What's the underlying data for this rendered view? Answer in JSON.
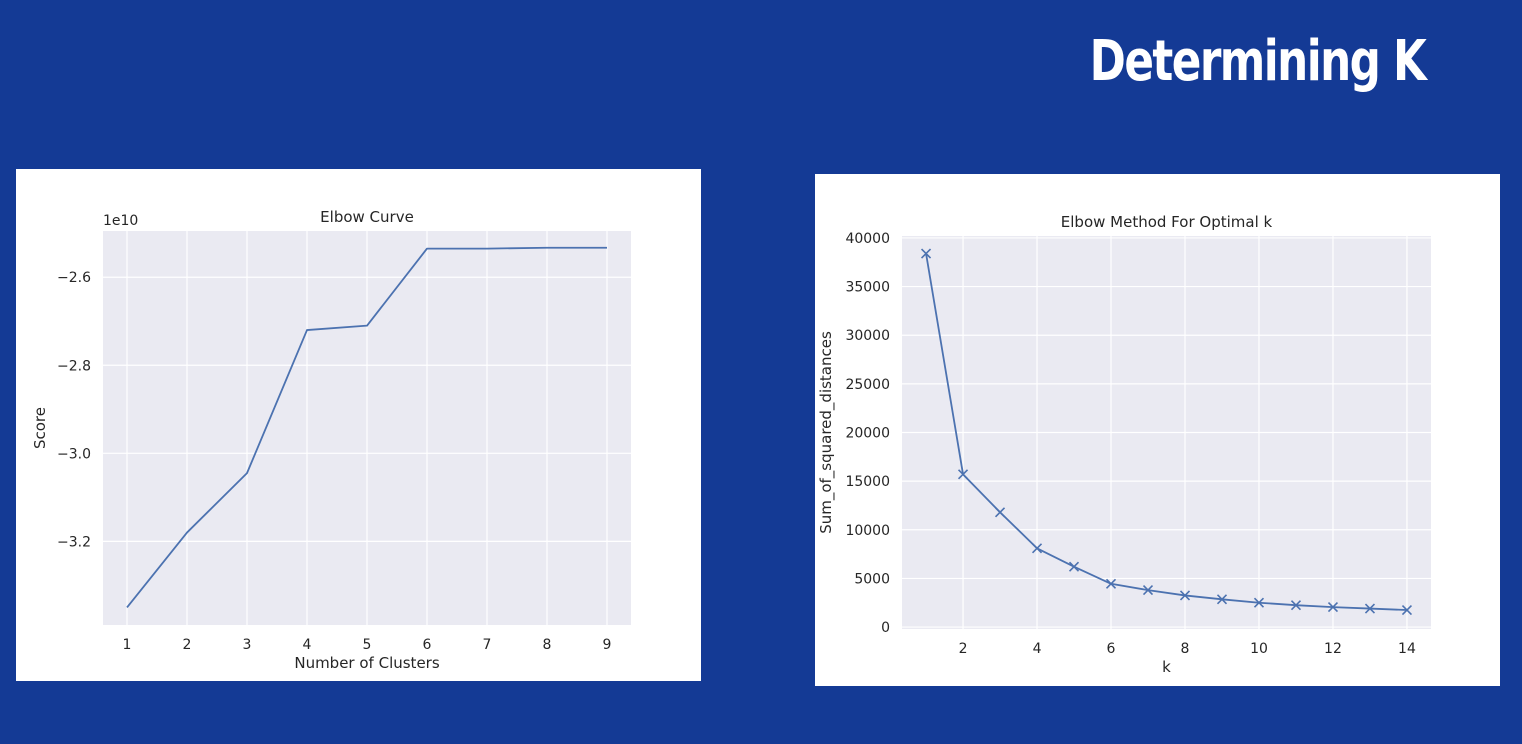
{
  "slide": {
    "title": "Determining K"
  },
  "colors": {
    "background": "#143a95",
    "plot_background": "#eaeaf2",
    "grid": "#ffffff",
    "line": "#4c72b0",
    "text": "#262626"
  },
  "chart_data": [
    {
      "type": "line",
      "title": "Elbow Curve",
      "xlabel": "Number of Clusters",
      "ylabel": "Score",
      "y_offset_text": "1e10",
      "x": [
        1,
        2,
        3,
        4,
        5,
        6,
        7,
        8,
        9
      ],
      "series": [
        {
          "values": [
            -3.35,
            -3.18,
            -3.045,
            -2.72,
            -2.71,
            -2.535,
            -2.535,
            -2.533,
            -2.533
          ],
          "marker": "none"
        }
      ],
      "xlim": [
        0.6,
        9.4
      ],
      "ylim": [
        -3.39,
        -2.495
      ],
      "xticks": [
        1,
        2,
        3,
        4,
        5,
        6,
        7,
        8,
        9
      ],
      "xtick_labels": [
        "1",
        "2",
        "3",
        "4",
        "5",
        "6",
        "7",
        "8",
        "9"
      ],
      "yticks": [
        -3.2,
        -3.0,
        -2.8,
        -2.6
      ],
      "ytick_labels": [
        "−3.2",
        "−3.0",
        "−2.8",
        "−2.6"
      ],
      "grid": true,
      "legend": "none"
    },
    {
      "type": "line",
      "title": "Elbow Method For Optimal k",
      "xlabel": "k",
      "ylabel": "Sum_of_squared_distances",
      "x": [
        1,
        2,
        3,
        4,
        5,
        6,
        7,
        8,
        9,
        10,
        11,
        12,
        13,
        14
      ],
      "series": [
        {
          "values": [
            38400,
            15700,
            11800,
            8100,
            6200,
            4450,
            3800,
            3250,
            2850,
            2500,
            2250,
            2050,
            1900,
            1750
          ],
          "marker": "x"
        }
      ],
      "xlim": [
        0.35,
        14.65
      ],
      "ylim": [
        -200,
        40200
      ],
      "xticks": [
        2,
        4,
        6,
        8,
        10,
        12,
        14
      ],
      "xtick_labels": [
        "2",
        "4",
        "6",
        "8",
        "10",
        "12",
        "14"
      ],
      "yticks": [
        0,
        5000,
        10000,
        15000,
        20000,
        25000,
        30000,
        35000,
        40000
      ],
      "ytick_labels": [
        "0",
        "5000",
        "10000",
        "15000",
        "20000",
        "25000",
        "30000",
        "35000",
        "40000"
      ],
      "grid": true,
      "legend": "none"
    }
  ]
}
